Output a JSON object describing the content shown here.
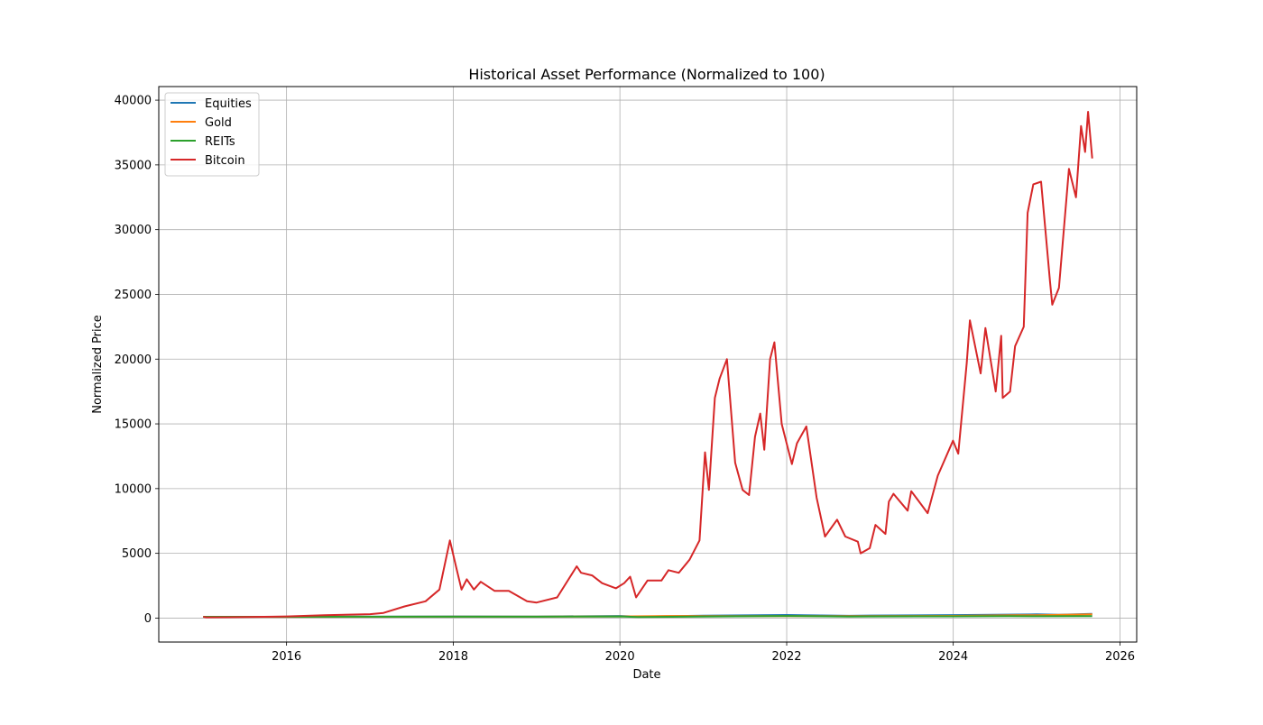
{
  "chart_data": {
    "type": "line",
    "title": "Historical Asset Performance (Normalized to 100)",
    "xlabel": "Date",
    "ylabel": "Normalized Price",
    "x_range": [
      "2014-06-20",
      "2026-03-15"
    ],
    "y_range": [
      -1850,
      41050
    ],
    "x_ticks": [
      "2016",
      "2018",
      "2020",
      "2022",
      "2024",
      "2026"
    ],
    "y_ticks": [
      0,
      5000,
      10000,
      15000,
      20000,
      25000,
      30000,
      35000,
      40000
    ],
    "grid": true,
    "legend_position": "top-left",
    "series": [
      {
        "name": "Equities",
        "color": "#1f77b4",
        "points": [
          [
            "2015-01-01",
            100
          ],
          [
            "2016-01-01",
            99
          ],
          [
            "2017-01-01",
            110
          ],
          [
            "2018-01-01",
            130
          ],
          [
            "2019-01-01",
            123
          ],
          [
            "2020-01-01",
            160
          ],
          [
            "2020-03-20",
            115
          ],
          [
            "2021-01-01",
            185
          ],
          [
            "2022-01-01",
            240
          ],
          [
            "2022-10-01",
            180
          ],
          [
            "2023-01-01",
            195
          ],
          [
            "2024-01-01",
            235
          ],
          [
            "2025-01-01",
            290
          ],
          [
            "2025-04-08",
            250
          ],
          [
            "2025-09-01",
            320
          ]
        ]
      },
      {
        "name": "Gold",
        "color": "#ff7f0e",
        "points": [
          [
            "2015-01-01",
            100
          ],
          [
            "2016-01-01",
            90
          ],
          [
            "2017-01-01",
            98
          ],
          [
            "2018-01-01",
            110
          ],
          [
            "2019-01-01",
            108
          ],
          [
            "2020-01-01",
            130
          ],
          [
            "2020-08-01",
            165
          ],
          [
            "2021-01-01",
            155
          ],
          [
            "2022-01-01",
            150
          ],
          [
            "2023-01-01",
            155
          ],
          [
            "2024-01-01",
            170
          ],
          [
            "2024-10-01",
            220
          ],
          [
            "2025-01-01",
            220
          ],
          [
            "2025-09-01",
            290
          ]
        ]
      },
      {
        "name": "REITs",
        "color": "#2ca02c",
        "points": [
          [
            "2015-01-01",
            100
          ],
          [
            "2016-01-01",
            98
          ],
          [
            "2017-01-01",
            105
          ],
          [
            "2018-01-01",
            110
          ],
          [
            "2019-01-01",
            105
          ],
          [
            "2020-01-01",
            130
          ],
          [
            "2020-03-20",
            80
          ],
          [
            "2021-01-01",
            115
          ],
          [
            "2022-01-01",
            160
          ],
          [
            "2022-10-01",
            115
          ],
          [
            "2023-01-01",
            125
          ],
          [
            "2024-01-01",
            135
          ],
          [
            "2024-09-01",
            150
          ],
          [
            "2025-01-01",
            140
          ],
          [
            "2025-09-01",
            150
          ]
        ]
      },
      {
        "name": "Bitcoin",
        "color": "#d62728",
        "points": [
          [
            "2015-01-01",
            100
          ],
          [
            "2015-01-14",
            60
          ],
          [
            "2015-06-01",
            70
          ],
          [
            "2015-11-01",
            110
          ],
          [
            "2016-01-01",
            130
          ],
          [
            "2016-06-15",
            220
          ],
          [
            "2017-01-01",
            300
          ],
          [
            "2017-03-01",
            400
          ],
          [
            "2017-06-01",
            900
          ],
          [
            "2017-09-01",
            1300
          ],
          [
            "2017-11-01",
            2200
          ],
          [
            "2017-12-17",
            6000
          ],
          [
            "2018-01-15",
            3800
          ],
          [
            "2018-02-06",
            2200
          ],
          [
            "2018-03-01",
            3000
          ],
          [
            "2018-04-01",
            2200
          ],
          [
            "2018-05-01",
            2800
          ],
          [
            "2018-07-01",
            2100
          ],
          [
            "2018-09-01",
            2100
          ],
          [
            "2018-11-20",
            1300
          ],
          [
            "2019-01-01",
            1200
          ],
          [
            "2019-04-01",
            1600
          ],
          [
            "2019-06-26",
            4000
          ],
          [
            "2019-07-15",
            3500
          ],
          [
            "2019-09-01",
            3300
          ],
          [
            "2019-10-15",
            2700
          ],
          [
            "2019-12-15",
            2300
          ],
          [
            "2020-01-20",
            2700
          ],
          [
            "2020-02-15",
            3200
          ],
          [
            "2020-03-12",
            1600
          ],
          [
            "2020-05-01",
            2900
          ],
          [
            "2020-07-01",
            2900
          ],
          [
            "2020-08-01",
            3700
          ],
          [
            "2020-09-15",
            3500
          ],
          [
            "2020-11-01",
            4500
          ],
          [
            "2020-12-15",
            6000
          ],
          [
            "2021-01-08",
            12800
          ],
          [
            "2021-01-25",
            9900
          ],
          [
            "2021-02-20",
            17000
          ],
          [
            "2021-03-13",
            18500
          ],
          [
            "2021-04-14",
            20000
          ],
          [
            "2021-05-20",
            12000
          ],
          [
            "2021-06-22",
            9900
          ],
          [
            "2021-07-20",
            9500
          ],
          [
            "2021-08-15",
            14000
          ],
          [
            "2021-09-07",
            15800
          ],
          [
            "2021-09-25",
            13000
          ],
          [
            "2021-10-20",
            20000
          ],
          [
            "2021-11-08",
            21300
          ],
          [
            "2021-12-10",
            15000
          ],
          [
            "2022-01-24",
            11900
          ],
          [
            "2022-02-15",
            13500
          ],
          [
            "2022-03-28",
            14800
          ],
          [
            "2022-05-12",
            9300
          ],
          [
            "2022-06-18",
            6300
          ],
          [
            "2022-08-10",
            7600
          ],
          [
            "2022-09-15",
            6300
          ],
          [
            "2022-11-09",
            5900
          ],
          [
            "2022-11-21",
            5000
          ],
          [
            "2022-12-31",
            5400
          ],
          [
            "2023-01-25",
            7200
          ],
          [
            "2023-03-10",
            6500
          ],
          [
            "2023-03-25",
            9000
          ],
          [
            "2023-04-14",
            9600
          ],
          [
            "2023-06-15",
            8300
          ],
          [
            "2023-07-01",
            9800
          ],
          [
            "2023-09-11",
            8100
          ],
          [
            "2023-10-25",
            11000
          ],
          [
            "2023-12-31",
            13700
          ],
          [
            "2024-01-23",
            12700
          ],
          [
            "2024-02-29",
            19700
          ],
          [
            "2024-03-14",
            23000
          ],
          [
            "2024-04-30",
            18900
          ],
          [
            "2024-05-21",
            22400
          ],
          [
            "2024-07-05",
            17500
          ],
          [
            "2024-07-29",
            21800
          ],
          [
            "2024-08-05",
            17000
          ],
          [
            "2024-09-06",
            17500
          ],
          [
            "2024-09-28",
            21000
          ],
          [
            "2024-11-05",
            22500
          ],
          [
            "2024-11-22",
            31300
          ],
          [
            "2024-12-17",
            33500
          ],
          [
            "2025-01-20",
            33700
          ],
          [
            "2025-02-28",
            26000
          ],
          [
            "2025-03-10",
            24200
          ],
          [
            "2025-04-08",
            25500
          ],
          [
            "2025-05-22",
            34700
          ],
          [
            "2025-06-22",
            32500
          ],
          [
            "2025-07-14",
            38000
          ],
          [
            "2025-08-01",
            36000
          ],
          [
            "2025-08-14",
            39100
          ],
          [
            "2025-09-01",
            35500
          ]
        ]
      }
    ]
  }
}
